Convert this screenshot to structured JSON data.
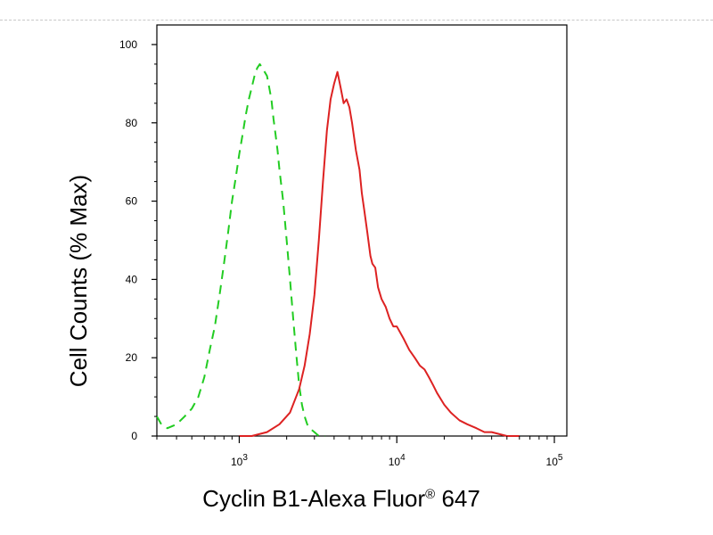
{
  "chart_data": {
    "type": "line",
    "xlabel": "Cyclin B1-Alexa Fluor",
    "xlabel_superscript": "®",
    "xlabel_suffix": " 647",
    "ylabel": "Cell Counts (% Max)",
    "x_scale": "log",
    "xlim": [
      300,
      120000
    ],
    "ylim": [
      0,
      105
    ],
    "y_ticks": [
      0,
      20,
      40,
      60,
      80,
      100
    ],
    "x_ticks": [
      {
        "value": 1000,
        "base": "10",
        "exp": "3"
      },
      {
        "value": 10000,
        "base": "10",
        "exp": "4"
      },
      {
        "value": 100000,
        "base": "10",
        "exp": "5"
      }
    ],
    "grid": false,
    "series": [
      {
        "color": "#22cc22",
        "style": "dashed",
        "x": [
          300,
          320,
          350,
          400,
          450,
          500,
          550,
          600,
          650,
          700,
          750,
          800,
          850,
          900,
          950,
          1000,
          1050,
          1100,
          1150,
          1200,
          1250,
          1300,
          1350,
          1400,
          1450,
          1500,
          1550,
          1600,
          1650,
          1700,
          1750,
          1800,
          1900,
          2000,
          2100,
          2200,
          2300,
          2400,
          2500,
          2600,
          2700,
          2800,
          3000,
          3200,
          3500
        ],
        "values": [
          5,
          3,
          2,
          3,
          5,
          7,
          10,
          15,
          22,
          28,
          36,
          44,
          52,
          60,
          66,
          72,
          77,
          82,
          86,
          89,
          92,
          94,
          95,
          94,
          93,
          92,
          89,
          86,
          81,
          77,
          73,
          68,
          60,
          50,
          40,
          30,
          21,
          13,
          8,
          5,
          3,
          2,
          1,
          0,
          0
        ]
      },
      {
        "color": "#dd2222",
        "style": "solid",
        "x": [
          1000,
          1200,
          1500,
          1800,
          2100,
          2400,
          2600,
          2800,
          3000,
          3200,
          3400,
          3600,
          3800,
          4000,
          4200,
          4400,
          4600,
          4800,
          5000,
          5200,
          5500,
          5800,
          6000,
          6200,
          6500,
          6800,
          7000,
          7300,
          7600,
          8000,
          8500,
          9000,
          9500,
          10000,
          11000,
          12000,
          13000,
          14000,
          15000,
          16000,
          17000,
          18000,
          20000,
          22000,
          25000,
          28000,
          32000,
          36000,
          40000,
          50000,
          60000
        ],
        "values": [
          0,
          0,
          1,
          3,
          6,
          12,
          18,
          26,
          36,
          50,
          65,
          78,
          86,
          90,
          93,
          89,
          85,
          86,
          84,
          80,
          73,
          68,
          62,
          58,
          52,
          46,
          44,
          43,
          38,
          35,
          33,
          30,
          28,
          28,
          25,
          22,
          20,
          18,
          17,
          15,
          13,
          11,
          8,
          6,
          4,
          3,
          2,
          1,
          1,
          0,
          0
        ]
      }
    ]
  }
}
